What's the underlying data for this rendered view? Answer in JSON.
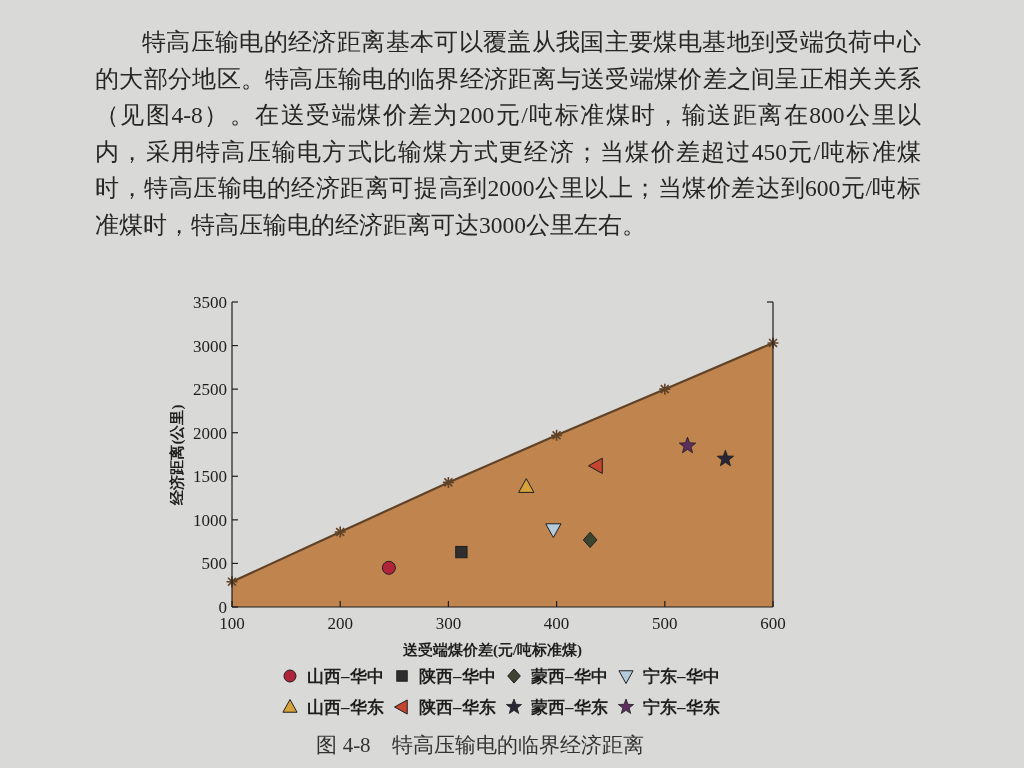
{
  "chart_data": {
    "type": "scatter",
    "title": "图 4-8　特高压输电的临界经济距离",
    "xlabel": "送受端煤价差(元/吨标准煤)",
    "ylabel": "经济距离(公里)",
    "annotations": [
      "特高压输电的经济距离基本可以覆盖从我国主要煤电基地到受端负荷中心的大部分地区。特高压输电的临界经济距离与送受端煤价差之间呈正相关关系（见图4-8）。在送受端煤价差为200元/吨标准煤时，输送距离在800公里以内，采用特高压输电方式比输煤方式更经济；当煤价差超过450元/吨标准煤时，特高压输电的经济距离可提高到2000公里以上；当煤价差达到600元/吨标准煤时，特高压输电的经济距离可达3000公里左右。"
    ],
    "xlim": [
      100,
      600
    ],
    "ylim": [
      0,
      3500
    ],
    "xticks": [
      100,
      200,
      300,
      400,
      500,
      600
    ],
    "yticks": [
      0,
      500,
      1000,
      1500,
      2000,
      2500,
      3000,
      3500
    ],
    "legend": "bottom",
    "series": [
      {
        "type": "area",
        "color": "#c0844e",
        "marker": "cross",
        "x": [
          100,
          200,
          300,
          400,
          500,
          600
        ],
        "values": [
          290,
          860,
          1430,
          1970,
          2500,
          3030
        ]
      },
      {
        "name": "山西–华中",
        "color": "#b0233a",
        "marker": "circle",
        "x": [
          245
        ],
        "values": [
          450
        ]
      },
      {
        "name": "陕西–华中",
        "color": "#2e2e2e",
        "marker": "square",
        "x": [
          312
        ],
        "values": [
          630
        ]
      },
      {
        "name": "蒙西–华中",
        "color": "#3d4530",
        "marker": "diamond",
        "x": [
          431
        ],
        "values": [
          770
        ]
      },
      {
        "name": "宁东–华中",
        "color": "#b4cbdc",
        "marker": "triangle-down",
        "x": [
          397
        ],
        "values": [
          890
        ]
      },
      {
        "name": "山西–华东",
        "color": "#d6a23a",
        "marker": "triangle",
        "x": [
          372
        ],
        "values": [
          1380
        ]
      },
      {
        "name": "陕西–华东",
        "color": "#c4452f",
        "marker": "triangle-left",
        "x": [
          437
        ],
        "values": [
          1620
        ]
      },
      {
        "name": "蒙西–华东",
        "color": "#262636",
        "marker": "star",
        "x": [
          556
        ],
        "values": [
          1700
        ]
      },
      {
        "name": "宁东–华东",
        "color": "#5e2e5e",
        "marker": "star",
        "x": [
          521
        ],
        "values": [
          1850
        ]
      }
    ]
  }
}
